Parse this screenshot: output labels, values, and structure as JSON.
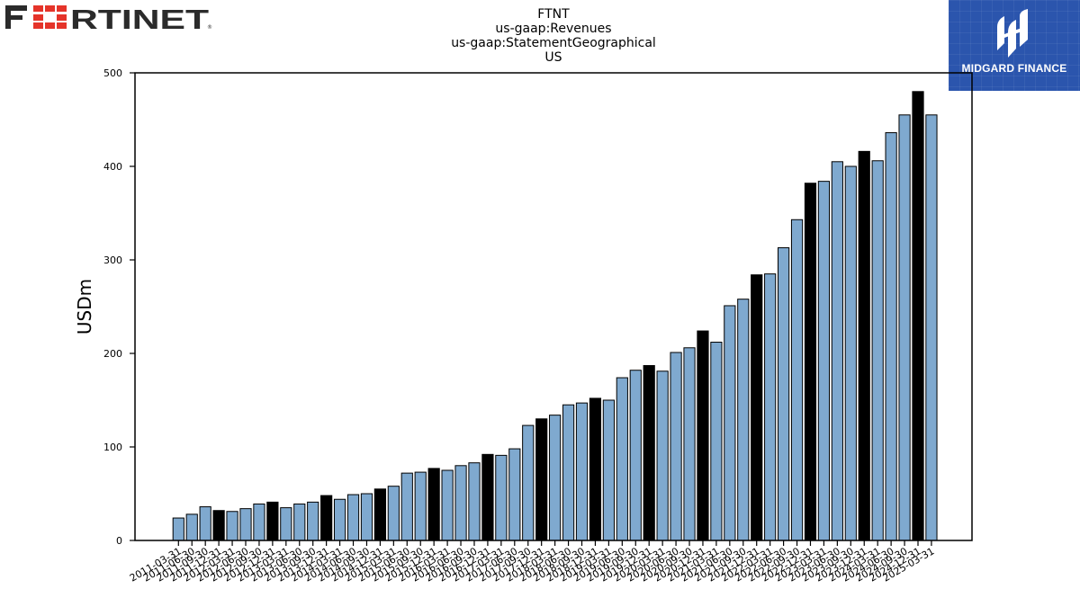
{
  "header": {
    "left_logo_text": "FORTINET",
    "right_logo_text": "MIDGARD FINANCE"
  },
  "colors": {
    "bar_default": "#7fa9cf",
    "bar_highlight": "#000000",
    "fortinet_red": "#e5342a",
    "fortinet_dark": "#2b2b2b",
    "midgard_blue": "#2b55ad"
  },
  "chart_data": {
    "type": "bar",
    "title_lines": [
      "FTNT",
      "us-gaap:Revenues",
      "us-gaap:StatementGeographical",
      "US"
    ],
    "xlabel": "",
    "ylabel": "USDm",
    "ylim": [
      0,
      500
    ],
    "yticks": [
      0,
      100,
      200,
      300,
      400,
      500
    ],
    "grid": false,
    "highlight_rule": "fiscal Q4 bars (Dec 31 / Sep 30 depending on year) drawn in black",
    "categories": [
      "2011-03-31",
      "2011-06-30",
      "2011-09-30",
      "2011-12-31",
      "2012-03-31",
      "2012-06-30",
      "2012-09-30",
      "2012-12-31",
      "2013-03-31",
      "2013-06-30",
      "2013-09-30",
      "2013-12-31",
      "2014-03-31",
      "2014-06-30",
      "2014-09-30",
      "2014-12-31",
      "2015-03-31",
      "2015-06-30",
      "2015-09-30",
      "2015-12-31",
      "2016-03-31",
      "2016-06-30",
      "2016-09-30",
      "2016-12-31",
      "2017-03-31",
      "2017-06-30",
      "2017-09-30",
      "2017-12-31",
      "2018-03-31",
      "2018-06-30",
      "2018-09-30",
      "2018-12-31",
      "2019-03-31",
      "2019-06-30",
      "2019-09-30",
      "2019-12-31",
      "2020-03-31",
      "2020-06-30",
      "2020-09-30",
      "2020-12-31",
      "2021-03-31",
      "2021-06-30",
      "2021-09-30",
      "2021-12-31",
      "2022-03-31",
      "2022-06-30",
      "2022-09-30",
      "2022-12-31",
      "2023-03-31",
      "2023-06-30",
      "2023-09-30",
      "2023-12-31",
      "2024-03-31",
      "2024-06-30",
      "2024-09-30",
      "2024-12-31",
      "2025-03-31"
    ],
    "tick_labels": [
      "2011-03-31",
      "2011-06-30",
      "2011-09-30",
      "2011-12-31",
      "2012-03-31",
      "2012-06-30",
      "2012-09-30",
      "2012-12-31",
      "2013-03-31",
      "2013-06-30",
      "2013-09-30",
      "2013-12-31",
      "2014-03-31",
      "2014-06-30",
      "2014-09-30",
      "2014-12-31",
      "2015-03-31",
      "2015-06-30",
      "2015-09-30",
      "2015-12-31",
      "2016-03-31",
      "2016-06-30",
      "2016-09-30",
      "2016-12-31",
      "2017-03-31",
      "2017-06-30",
      "2017-09-30",
      "2017-12-31",
      "2018-03-31",
      "2018-06-30",
      "2018-09-30",
      "2018-12-31",
      "2019-03-31",
      "2019-06-30",
      "2019-09-30",
      "2019-12-31",
      "2020-03-31",
      "2020-06-30",
      "2020-09-30",
      "2020-12-31",
      "2021-03-31",
      "2021-06-30",
      "2021-09-30",
      "2021-12-31",
      "2022-03-31",
      "2022-06-30",
      "2022-09-30",
      "2022-12-31",
      "2023-03-31",
      "2023-06-30",
      "2023-09-30",
      "2023-12-31",
      "2024-03-31",
      "2024-06-30",
      "2024-09-30",
      "2024-12-31",
      "2025-03-31"
    ],
    "values": [
      24,
      28,
      36,
      32,
      31,
      34,
      39,
      41,
      35,
      39,
      41,
      48,
      44,
      49,
      50,
      55,
      58,
      72,
      73,
      77,
      75,
      80,
      83,
      92,
      91,
      98,
      123,
      130,
      134,
      145,
      147,
      152,
      150,
      174,
      182,
      187,
      181,
      201,
      206,
      224,
      212,
      251,
      258,
      284,
      285,
      313,
      343,
      382,
      384,
      405,
      400,
      416,
      406,
      436,
      455,
      480,
      455
    ],
    "highlight": [
      false,
      false,
      false,
      true,
      false,
      false,
      false,
      true,
      false,
      false,
      false,
      true,
      false,
      false,
      false,
      true,
      false,
      false,
      false,
      true,
      false,
      false,
      false,
      true,
      false,
      false,
      false,
      true,
      false,
      false,
      false,
      true,
      false,
      false,
      false,
      true,
      false,
      false,
      false,
      true,
      false,
      false,
      false,
      true,
      false,
      false,
      false,
      true,
      false,
      false,
      false,
      true,
      false,
      false,
      false,
      true,
      false
    ]
  }
}
